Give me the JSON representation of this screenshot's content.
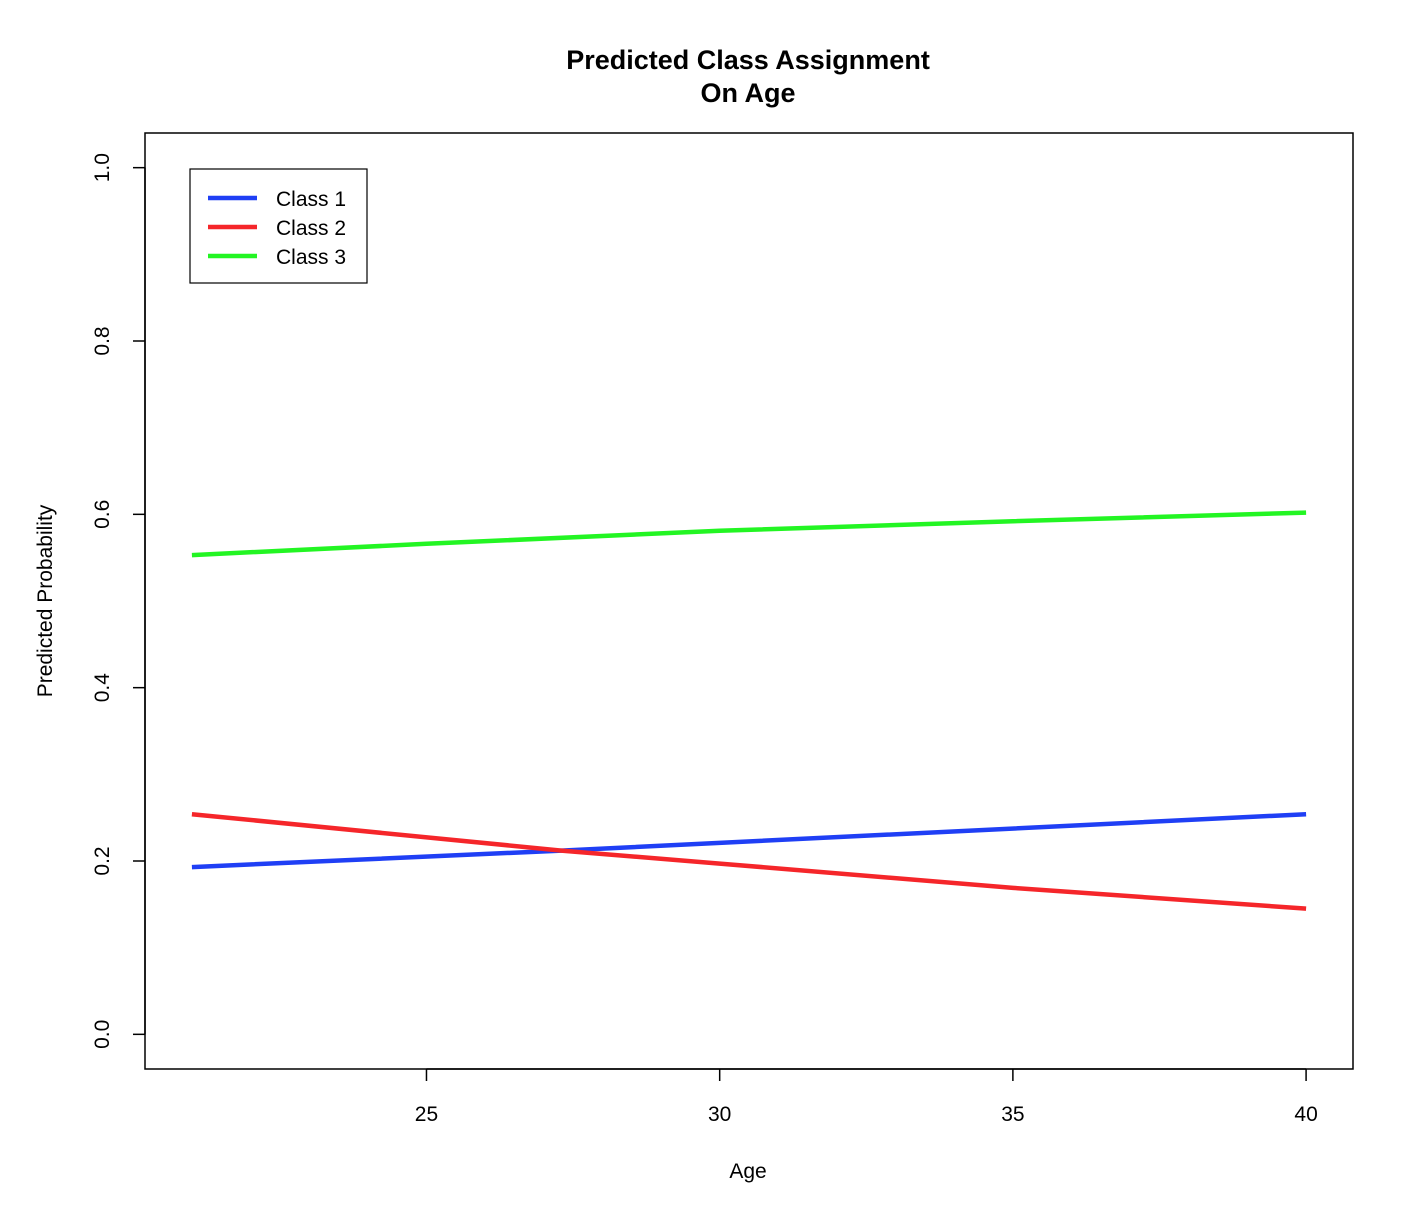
{
  "chart_data": {
    "type": "line",
    "title": [
      "Predicted Class Assignment",
      "On Age"
    ],
    "xlabel": "Age",
    "ylabel": "Predicted Probability",
    "xlim": [
      20.2,
      40.8
    ],
    "ylim": [
      -0.04,
      1.04
    ],
    "x_ticks": [
      25,
      30,
      35,
      40
    ],
    "x_tick_labels": [
      "25",
      "30",
      "35",
      "40"
    ],
    "y_ticks": [
      0.0,
      0.2,
      0.4,
      0.6,
      0.8,
      1.0
    ],
    "y_tick_labels": [
      "0.0",
      "0.2",
      "0.4",
      "0.6",
      "0.8",
      "1.0"
    ],
    "x": [
      21,
      40
    ],
    "series": [
      {
        "name": "Class 1",
        "color": "#1f3ff5",
        "x": [
          21,
          27.3,
          40
        ],
        "values": [
          0.193,
          0.212,
          0.254
        ]
      },
      {
        "name": "Class 2",
        "color": "#f5262a",
        "x": [
          21,
          27.3,
          30,
          35,
          40
        ],
        "values": [
          0.254,
          0.212,
          0.197,
          0.169,
          0.145
        ]
      },
      {
        "name": "Class 3",
        "color": "#23f523",
        "x": [
          21,
          25,
          30,
          35,
          40
        ],
        "values": [
          0.553,
          0.566,
          0.581,
          0.592,
          0.602
        ]
      }
    ],
    "legend": {
      "placement": "top-left",
      "entries": [
        "Class 1",
        "Class 2",
        "Class 3"
      ]
    },
    "grid": false
  }
}
